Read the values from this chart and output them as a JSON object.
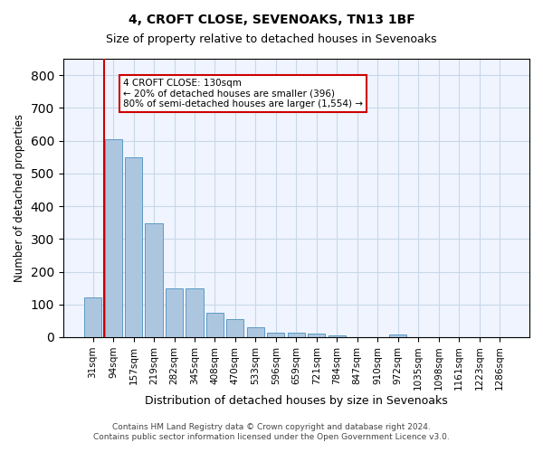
{
  "title1": "4, CROFT CLOSE, SEVENOAKS, TN13 1BF",
  "title2": "Size of property relative to detached houses in Sevenoaks",
  "xlabel": "Distribution of detached houses by size in Sevenoaks",
  "ylabel": "Number of detached properties",
  "categories": [
    "31sqm",
    "94sqm",
    "157sqm",
    "219sqm",
    "282sqm",
    "345sqm",
    "408sqm",
    "470sqm",
    "533sqm",
    "596sqm",
    "659sqm",
    "721sqm",
    "784sqm",
    "847sqm",
    "910sqm",
    "972sqm",
    "1035sqm",
    "1098sqm",
    "1161sqm",
    "1223sqm",
    "1286sqm"
  ],
  "values": [
    120,
    605,
    550,
    347,
    148,
    148,
    75,
    55,
    30,
    15,
    13,
    10,
    5,
    0,
    0,
    8,
    0,
    0,
    0,
    0,
    0
  ],
  "bar_color": "#adc6e0",
  "bar_edge_color": "#5a9ac5",
  "grid_color": "#c8d8e8",
  "background_color": "#f0f4ff",
  "vline_x": 1,
  "vline_color": "#cc0000",
  "annotation_text": "4 CROFT CLOSE: 130sqm\n← 20% of detached houses are smaller (396)\n80% of semi-detached houses are larger (1,554) →",
  "annotation_box_color": "#ffffff",
  "annotation_box_edge": "#cc0000",
  "ylim": [
    0,
    850
  ],
  "yticks": [
    0,
    100,
    200,
    300,
    400,
    500,
    600,
    700,
    800
  ],
  "footer1": "Contains HM Land Registry data © Crown copyright and database right 2024.",
  "footer2": "Contains public sector information licensed under the Open Government Licence v3.0."
}
